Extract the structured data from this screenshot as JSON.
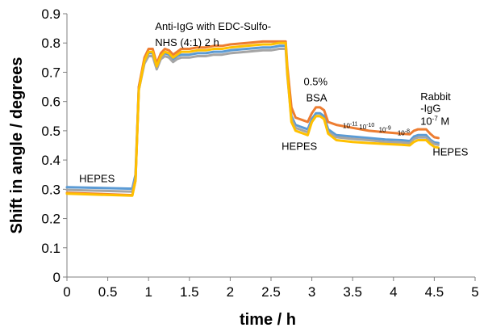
{
  "chart_data": {
    "type": "line",
    "xlabel": "time / h",
    "ylabel": "Shift in angle / degrees",
    "xlim": [
      0,
      5
    ],
    "ylim": [
      0,
      0.9
    ],
    "x_ticks": [
      "0",
      "0.5",
      "1",
      "1.5",
      "2",
      "2.5",
      "3",
      "3.5",
      "4",
      "4.5",
      "5"
    ],
    "y_ticks": [
      "0",
      "0.1",
      "0.2",
      "0.3",
      "0.4",
      "0.5",
      "0.6",
      "0.7",
      "0.8",
      "0.9"
    ],
    "grid": false,
    "legend": "none",
    "series": [
      {
        "color": "#5B9BD5",
        "x": [
          0,
          0.8,
          0.84,
          0.88,
          0.95,
          1.0,
          1.05,
          1.1,
          1.15,
          1.2,
          1.25,
          1.3,
          1.35,
          1.4,
          1.5,
          1.6,
          1.7,
          1.8,
          1.9,
          2.0,
          2.2,
          2.4,
          2.5,
          2.6,
          2.68,
          2.7,
          2.75,
          2.8,
          2.85,
          2.9,
          2.95,
          3.0,
          3.05,
          3.1,
          3.15,
          3.2,
          3.3,
          3.5,
          3.7,
          3.9,
          4.1,
          4.2,
          4.25,
          4.3,
          4.4,
          4.45,
          4.5,
          4.55
        ],
        "y": [
          0.307,
          0.302,
          0.35,
          0.65,
          0.74,
          0.765,
          0.765,
          0.72,
          0.755,
          0.765,
          0.76,
          0.745,
          0.755,
          0.76,
          0.76,
          0.765,
          0.765,
          0.77,
          0.77,
          0.775,
          0.78,
          0.785,
          0.785,
          0.79,
          0.79,
          0.7,
          0.55,
          0.52,
          0.515,
          0.51,
          0.505,
          0.54,
          0.56,
          0.56,
          0.55,
          0.505,
          0.485,
          0.48,
          0.475,
          0.47,
          0.468,
          0.465,
          0.48,
          0.485,
          0.485,
          0.47,
          0.46,
          0.458
        ]
      },
      {
        "color": "#A5A5A5",
        "x": [
          0,
          0.8,
          0.84,
          0.88,
          0.95,
          1.0,
          1.05,
          1.1,
          1.15,
          1.2,
          1.25,
          1.3,
          1.35,
          1.4,
          1.5,
          1.6,
          1.7,
          1.8,
          1.9,
          2.0,
          2.2,
          2.4,
          2.5,
          2.6,
          2.68,
          2.7,
          2.75,
          2.8,
          2.85,
          2.9,
          2.95,
          3.0,
          3.05,
          3.1,
          3.15,
          3.2,
          3.3,
          3.5,
          3.7,
          3.9,
          4.1,
          4.2,
          4.25,
          4.3,
          4.4,
          4.45,
          4.5,
          4.55
        ],
        "y": [
          0.298,
          0.292,
          0.34,
          0.64,
          0.73,
          0.755,
          0.755,
          0.71,
          0.745,
          0.755,
          0.75,
          0.735,
          0.745,
          0.75,
          0.75,
          0.755,
          0.755,
          0.76,
          0.76,
          0.765,
          0.77,
          0.775,
          0.775,
          0.78,
          0.78,
          0.69,
          0.54,
          0.51,
          0.505,
          0.5,
          0.495,
          0.53,
          0.55,
          0.55,
          0.54,
          0.495,
          0.478,
          0.472,
          0.468,
          0.462,
          0.46,
          0.458,
          0.472,
          0.477,
          0.477,
          0.465,
          0.455,
          0.452
        ]
      },
      {
        "color": "#ED7D31",
        "x": [
          0,
          0.8,
          0.84,
          0.88,
          0.95,
          1.0,
          1.05,
          1.1,
          1.15,
          1.2,
          1.25,
          1.3,
          1.35,
          1.4,
          1.5,
          1.6,
          1.7,
          1.8,
          1.9,
          2.0,
          2.2,
          2.4,
          2.5,
          2.6,
          2.68,
          2.7,
          2.75,
          2.8,
          2.85,
          2.9,
          2.95,
          3.0,
          3.05,
          3.1,
          3.15,
          3.2,
          3.3,
          3.5,
          3.7,
          3.9,
          4.1,
          4.2,
          4.25,
          4.3,
          4.4,
          4.45,
          4.5,
          4.55
        ],
        "y": [
          0.288,
          0.28,
          0.33,
          0.65,
          0.75,
          0.78,
          0.78,
          0.73,
          0.765,
          0.78,
          0.775,
          0.76,
          0.77,
          0.78,
          0.78,
          0.785,
          0.785,
          0.79,
          0.79,
          0.795,
          0.8,
          0.805,
          0.805,
          0.805,
          0.805,
          0.72,
          0.58,
          0.545,
          0.54,
          0.535,
          0.53,
          0.56,
          0.58,
          0.58,
          0.57,
          0.53,
          0.52,
          0.51,
          0.5,
          0.495,
          0.49,
          0.488,
          0.5,
          0.505,
          0.505,
          0.49,
          0.478,
          0.475
        ]
      },
      {
        "color": "#FFC000",
        "x": [
          0,
          0.8,
          0.84,
          0.88,
          0.95,
          1.0,
          1.05,
          1.1,
          1.15,
          1.2,
          1.25,
          1.3,
          1.35,
          1.4,
          1.5,
          1.6,
          1.7,
          1.8,
          1.9,
          2.0,
          2.2,
          2.4,
          2.5,
          2.6,
          2.68,
          2.7,
          2.75,
          2.8,
          2.85,
          2.9,
          2.95,
          3.0,
          3.05,
          3.1,
          3.15,
          3.2,
          3.3,
          3.5,
          3.7,
          3.9,
          4.1,
          4.2,
          4.25,
          4.3,
          4.4,
          4.45,
          4.5,
          4.55
        ],
        "y": [
          0.285,
          0.278,
          0.33,
          0.64,
          0.74,
          0.77,
          0.77,
          0.72,
          0.755,
          0.77,
          0.765,
          0.75,
          0.76,
          0.77,
          0.77,
          0.775,
          0.775,
          0.78,
          0.78,
          0.785,
          0.79,
          0.795,
          0.795,
          0.8,
          0.8,
          0.7,
          0.53,
          0.5,
          0.495,
          0.49,
          0.485,
          0.53,
          0.55,
          0.55,
          0.54,
          0.49,
          0.468,
          0.462,
          0.458,
          0.455,
          0.452,
          0.45,
          0.462,
          0.468,
          0.468,
          0.455,
          0.445,
          0.442
        ]
      }
    ],
    "annotations": [
      {
        "text": "HEPES",
        "x": 0.15,
        "y": 0.325
      },
      {
        "text": "Anti-IgG with EDC-Sulfo-",
        "x": 1.08,
        "y": 0.845
      },
      {
        "text": "NHS (4:1) 2 h",
        "x": 1.08,
        "y": 0.79
      },
      {
        "text": "0.5%",
        "x": 2.9,
        "y": 0.655
      },
      {
        "text": "BSA",
        "x": 2.93,
        "y": 0.6
      },
      {
        "text": "HEPES",
        "x": 2.63,
        "y": 0.435
      },
      {
        "text": "Rabbit",
        "x": 4.33,
        "y": 0.605
      },
      {
        "text": "-IgG",
        "x": 4.33,
        "y": 0.565
      },
      {
        "text": "HEPES",
        "x": 4.48,
        "y": 0.415
      }
    ],
    "concentration_labels": [
      {
        "base": "10",
        "exp": "-11",
        "x": 3.38,
        "y": 0.51
      },
      {
        "base": "10",
        "exp": "-10",
        "x": 3.58,
        "y": 0.505
      },
      {
        "base": "10",
        "exp": "-9",
        "x": 3.82,
        "y": 0.495
      },
      {
        "base": "10",
        "exp": "-8",
        "x": 4.05,
        "y": 0.485
      },
      {
        "base": "10",
        "exp": "-7",
        "unit": " M",
        "x": 4.33,
        "y": 0.52
      }
    ]
  }
}
